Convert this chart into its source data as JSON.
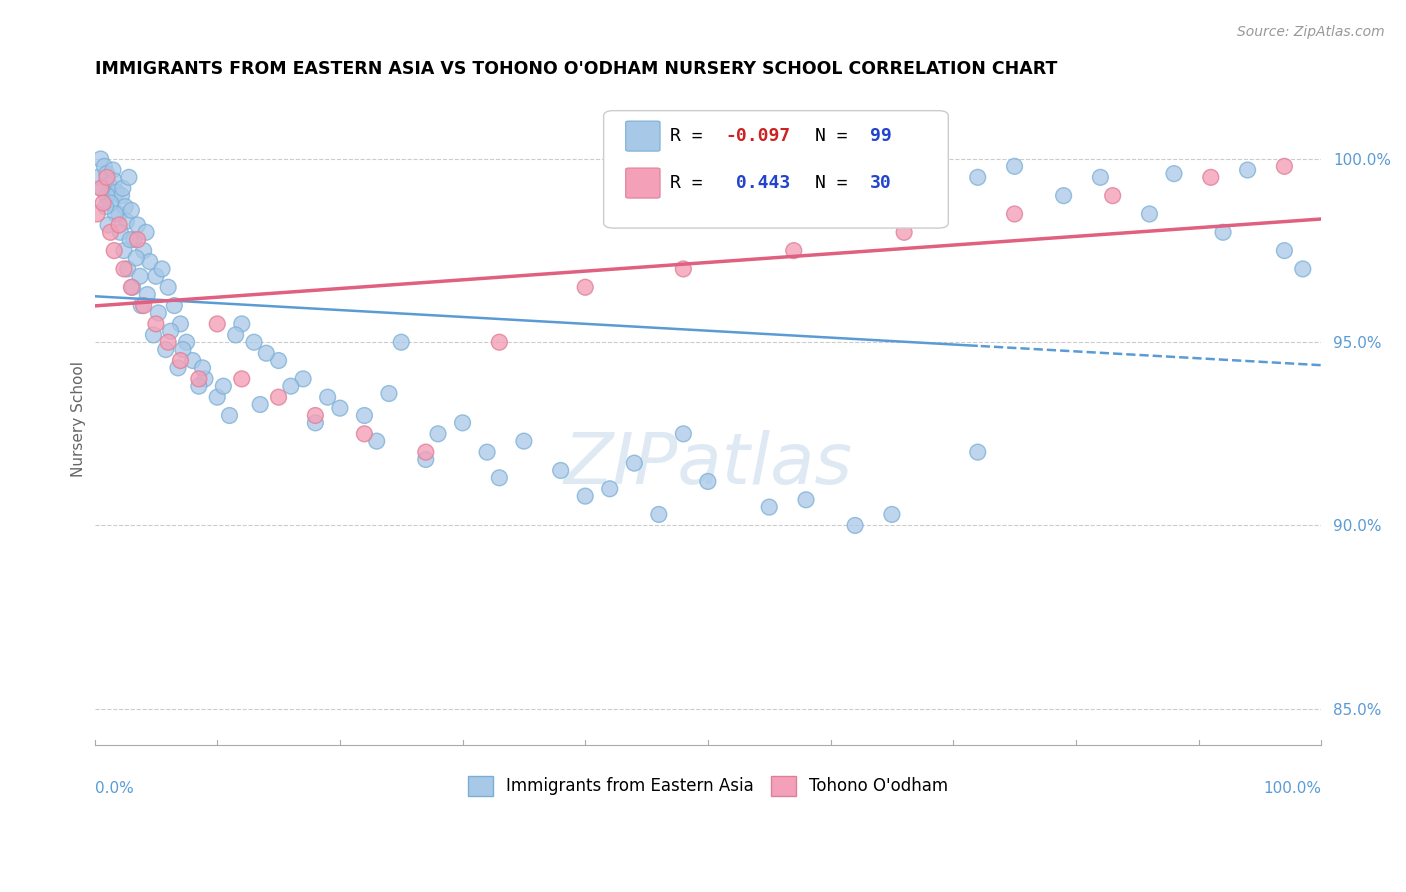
{
  "title": "IMMIGRANTS FROM EASTERN ASIA VS TOHONO O'ODHAM NURSERY SCHOOL CORRELATION CHART",
  "source": "Source: ZipAtlas.com",
  "ylabel": "Nursery School",
  "y_ticks": [
    85.0,
    90.0,
    95.0,
    100.0
  ],
  "blue_color": "#a8c8e8",
  "pink_color": "#f4a0b8",
  "blue_edge_color": "#7aafd4",
  "pink_edge_color": "#e08098",
  "blue_line_color": "#5b9bd5",
  "pink_line_color": "#e06080",
  "r1": -0.097,
  "n1": 99,
  "r2": 0.443,
  "n2": 30,
  "watermark_text": "ZIPatlas",
  "legend1_label": "Immigrants from Eastern Asia",
  "legend2_label": "Tohono O'odham",
  "blue_scatter_x": [
    0.3,
    0.5,
    0.8,
    1.0,
    1.2,
    1.4,
    1.5,
    1.6,
    1.8,
    2.0,
    2.2,
    2.3,
    2.5,
    2.6,
    2.8,
    3.0,
    3.2,
    3.5,
    4.0,
    4.2,
    4.5,
    5.0,
    5.5,
    6.0,
    6.5,
    7.0,
    7.5,
    8.0,
    9.0,
    10.0,
    11.0,
    12.0,
    13.0,
    15.0,
    17.0,
    19.0,
    22.0,
    25.0,
    28.0,
    32.0,
    38.0,
    42.0,
    48.0,
    55.0,
    62.0,
    68.0,
    75.0,
    82.0,
    88.0,
    94.0,
    1.0,
    1.3,
    1.7,
    2.1,
    2.4,
    2.7,
    3.1,
    3.8,
    4.8,
    5.8,
    6.8,
    8.5,
    11.5,
    14.0,
    16.0,
    20.0,
    24.0,
    30.0,
    35.0,
    44.0,
    50.0,
    58.0,
    65.0,
    72.0,
    79.0,
    86.0,
    92.0,
    97.0,
    98.5,
    0.6,
    0.9,
    1.1,
    2.9,
    3.4,
    3.7,
    4.3,
    5.2,
    6.2,
    7.2,
    8.8,
    10.5,
    13.5,
    18.0,
    23.0,
    27.0,
    33.0,
    40.0,
    46.0,
    72.0
  ],
  "blue_scatter_y": [
    99.5,
    100.0,
    99.8,
    99.6,
    99.3,
    98.8,
    99.7,
    99.4,
    99.1,
    98.5,
    99.0,
    99.2,
    98.7,
    98.3,
    99.5,
    98.6,
    97.8,
    98.2,
    97.5,
    98.0,
    97.2,
    96.8,
    97.0,
    96.5,
    96.0,
    95.5,
    95.0,
    94.5,
    94.0,
    93.5,
    93.0,
    95.5,
    95.0,
    94.5,
    94.0,
    93.5,
    93.0,
    95.0,
    92.5,
    92.0,
    91.5,
    91.0,
    92.5,
    90.5,
    90.0,
    99.5,
    99.8,
    99.5,
    99.6,
    99.7,
    99.0,
    98.8,
    98.5,
    98.0,
    97.5,
    97.0,
    96.5,
    96.0,
    95.2,
    94.8,
    94.3,
    93.8,
    95.2,
    94.7,
    93.8,
    93.2,
    93.6,
    92.8,
    92.3,
    91.7,
    91.2,
    90.7,
    90.3,
    99.5,
    99.0,
    98.5,
    98.0,
    97.5,
    97.0,
    99.2,
    98.7,
    98.2,
    97.8,
    97.3,
    96.8,
    96.3,
    95.8,
    95.3,
    94.8,
    94.3,
    93.8,
    93.3,
    92.8,
    92.3,
    91.8,
    91.3,
    90.8,
    90.3,
    92.0
  ],
  "pink_scatter_x": [
    0.2,
    0.5,
    0.7,
    1.0,
    1.3,
    1.6,
    2.0,
    2.4,
    3.0,
    3.5,
    4.0,
    5.0,
    6.0,
    7.0,
    8.5,
    10.0,
    12.0,
    15.0,
    18.0,
    22.0,
    27.0,
    33.0,
    40.0,
    48.0,
    57.0,
    66.0,
    75.0,
    83.0,
    91.0,
    97.0
  ],
  "pink_scatter_y": [
    98.5,
    99.2,
    98.8,
    99.5,
    98.0,
    97.5,
    98.2,
    97.0,
    96.5,
    97.8,
    96.0,
    95.5,
    95.0,
    94.5,
    94.0,
    95.5,
    94.0,
    93.5,
    93.0,
    92.5,
    92.0,
    95.0,
    96.5,
    97.0,
    97.5,
    98.0,
    98.5,
    99.0,
    99.5,
    99.8
  ]
}
